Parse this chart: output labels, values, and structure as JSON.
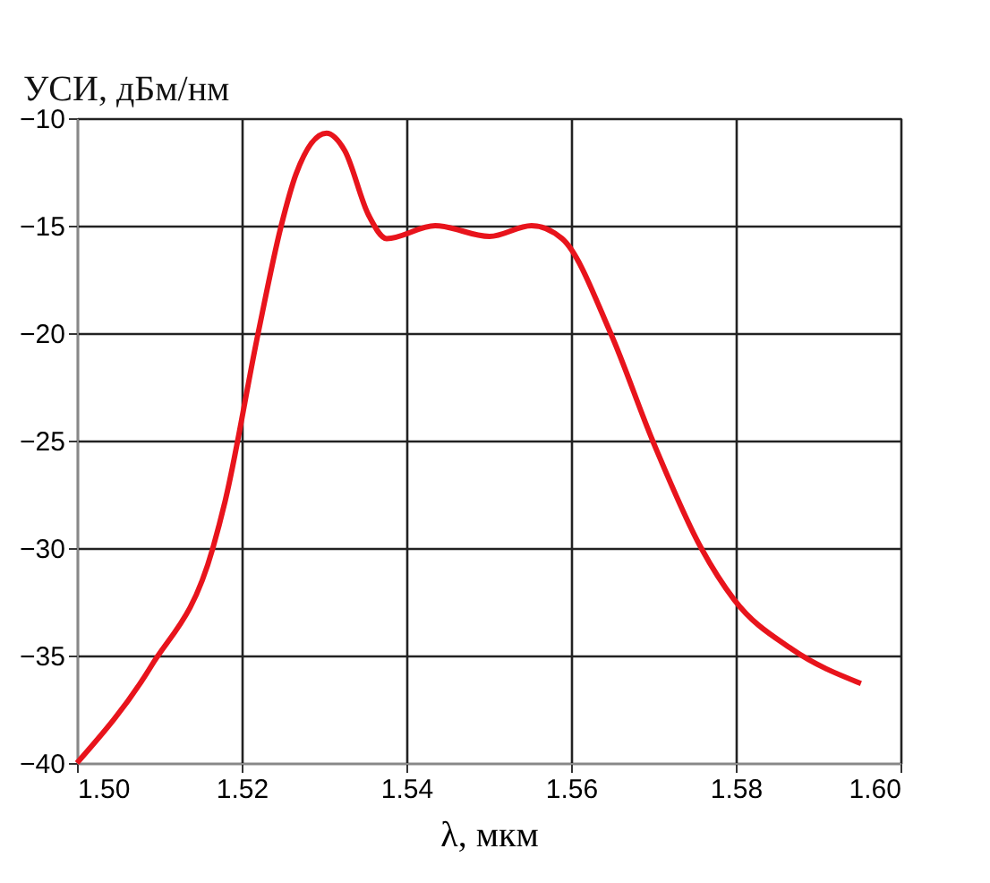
{
  "chart_data": {
    "type": "line",
    "ylabel": "УСИ, дБм/нм",
    "xlabel": "λ, мкм",
    "x": [
      1.5,
      1.509,
      1.5165,
      1.518,
      1.522,
      1.5248,
      1.5266,
      1.5303,
      1.5325,
      1.5354,
      1.5376,
      1.5435,
      1.5501,
      1.5552,
      1.5589,
      1.5648,
      1.5699,
      1.5758,
      1.5798,
      1.5868,
      1.5952
    ],
    "series": [
      {
        "color": "#e8141c",
        "values": [
          -40,
          -35.5,
          -30,
          -27.8,
          -20,
          -15,
          -12.6,
          -10.7,
          -11.5,
          -14.5,
          -15.6,
          -15,
          -15.5,
          -15,
          -15.6,
          -20,
          -25,
          -30,
          -32.4,
          -34.7,
          -36.3
        ]
      }
    ],
    "xlim": [
      1.5,
      1.6
    ],
    "xticks": [
      {
        "value": 1.5,
        "label": "1.50"
      },
      1.52,
      1.54,
      1.56,
      1.58,
      {
        "value": 1.6,
        "label": "1.60"
      }
    ],
    "ylim": [
      -40,
      -10
    ],
    "yticks": [
      -40,
      -35,
      -30,
      -25,
      -20,
      -15,
      -10
    ],
    "grid": true,
    "marker": "none",
    "line_style": "solid"
  }
}
